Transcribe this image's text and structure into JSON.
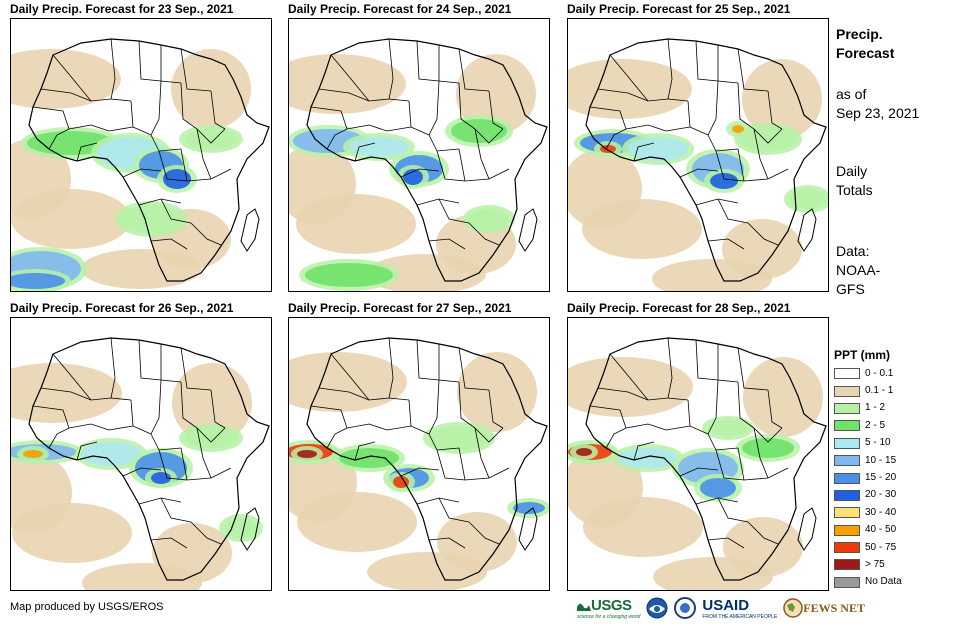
{
  "panels": [
    {
      "title": "Daily Precip. Forecast for 23 Sep., 2021"
    },
    {
      "title": "Daily Precip. Forecast for 24 Sep., 2021"
    },
    {
      "title": "Daily Precip. Forecast for 25 Sep., 2021"
    },
    {
      "title": "Daily Precip. Forecast for 26 Sep., 2021"
    },
    {
      "title": "Daily Precip. Forecast for 27 Sep., 2021"
    },
    {
      "title": "Daily Precip. Forecast for 28 Sep., 2021"
    }
  ],
  "side": {
    "title_line1": "Precip.",
    "title_line2": "Forecast",
    "asof_line1": "as of",
    "asof_line2": "Sep 23, 2021",
    "daily_line1": "Daily",
    "daily_line2": "Totals",
    "data_line1": "Data:",
    "data_line2": "NOAA-",
    "data_line3": "GFS"
  },
  "legend": {
    "title": "PPT (mm)",
    "items": [
      {
        "label": "0 - 0.1",
        "color": "#ffffff"
      },
      {
        "label": "0.1 - 1",
        "color": "#e8d4b0"
      },
      {
        "label": "1 - 2",
        "color": "#b6f2a6"
      },
      {
        "label": "2 - 5",
        "color": "#6fe26a"
      },
      {
        "label": "5 - 10",
        "color": "#aee8f0"
      },
      {
        "label": "10 - 15",
        "color": "#7fb8ee"
      },
      {
        "label": "15 - 20",
        "color": "#4a90e8"
      },
      {
        "label": "20 - 30",
        "color": "#1f5fe0"
      },
      {
        "label": "30 - 40",
        "color": "#fde27a"
      },
      {
        "label": "40 - 50",
        "color": "#f5a000"
      },
      {
        "label": "50 - 75",
        "color": "#f03a0a"
      },
      {
        "label": "> 75",
        "color": "#a01818"
      },
      {
        "label": "No Data",
        "color": "#999999"
      }
    ]
  },
  "credit": "Map produced by USGS/EROS",
  "logos": {
    "usgs": "USGS",
    "usgs_tagline": "science for a changing world",
    "usaid": "USAID",
    "usaid_tagline": "FROM THE AMERICAN PEOPLE",
    "fewsnet": "FEWS NET"
  }
}
